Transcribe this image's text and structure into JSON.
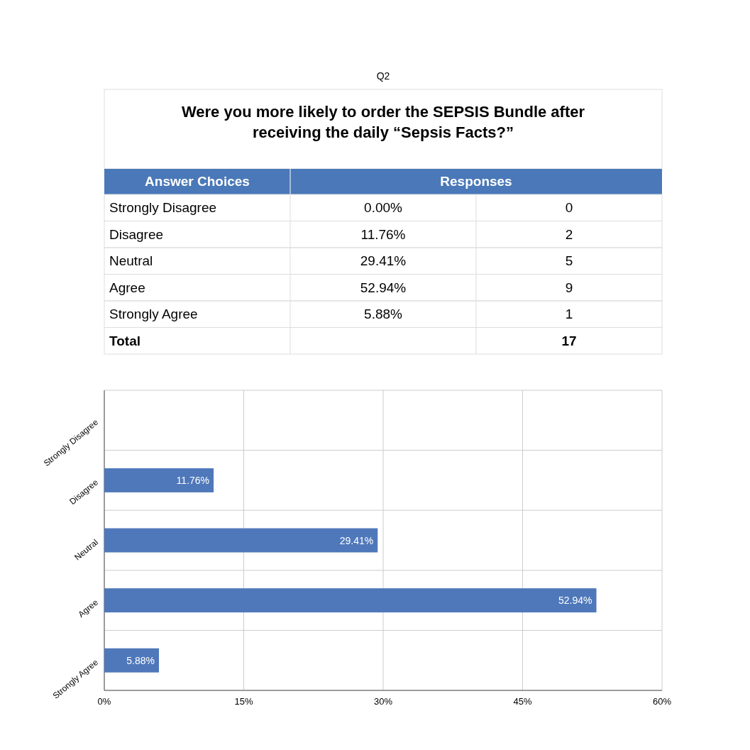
{
  "chart_data": [
    {
      "type": "other",
      "title": "Q2",
      "subtitle": "Were you more likely to order the SEPSIS Bundle after receiving the daily “Sepsis Facts?”",
      "annotations": [
        "Answer Choices",
        "Responses",
        "Strongly Disagree",
        "0.00%",
        "0",
        "Disagree",
        "11.76%",
        "2",
        "Neutral",
        "29.41%",
        "5",
        "Agree",
        "52.94%",
        "9",
        "Strongly Agree",
        "5.88%",
        "1",
        "Total",
        null,
        "17"
      ]
    },
    {
      "type": "bar",
      "orientation": "horizontal",
      "categories": [
        "Strongly Disagree",
        "Disagree",
        "Neutral",
        "Agree",
        "Strongly Agree"
      ],
      "values": [
        0,
        11.76,
        29.41,
        52.94,
        5.88
      ],
      "color": "#4f78ba",
      "value_labels": [
        null,
        "11.76%",
        "29.41%",
        "52.94%",
        "5.88%"
      ],
      "xlim": [
        0,
        60
      ],
      "xticks": [
        {
          "value": 0,
          "label": "0%"
        },
        {
          "value": 15,
          "label": "15%"
        },
        {
          "value": 30,
          "label": "30%"
        },
        {
          "value": 45,
          "label": "45%"
        },
        {
          "value": 60,
          "label": "60%"
        }
      ],
      "grid": true
    }
  ]
}
